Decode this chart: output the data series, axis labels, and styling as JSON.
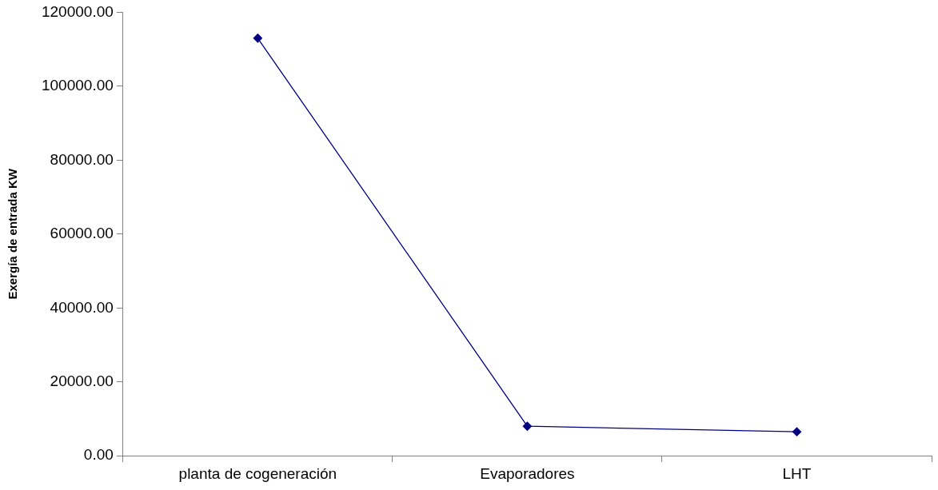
{
  "chart_data": {
    "type": "line",
    "ylabel": "Exergía de entrada KW",
    "categories": [
      "planta de cogeneración",
      "Evaporadores",
      "LHT"
    ],
    "series": [
      {
        "color": "#000080",
        "values": [
          113000,
          8000,
          6500
        ]
      }
    ],
    "ylim": [
      0,
      120000
    ],
    "yticks": [
      {
        "value": 0,
        "label": "0.00"
      },
      {
        "value": 20000,
        "label": "20000.00"
      },
      {
        "value": 40000,
        "label": "40000.00"
      },
      {
        "value": 60000,
        "label": "60000.00"
      },
      {
        "value": 80000,
        "label": "80000.00"
      },
      {
        "value": 100000,
        "label": "100000.00"
      },
      {
        "value": 120000,
        "label": "120000.00"
      }
    ],
    "grid": false,
    "legend": false,
    "marker": "diamond",
    "line_style": "solid"
  }
}
